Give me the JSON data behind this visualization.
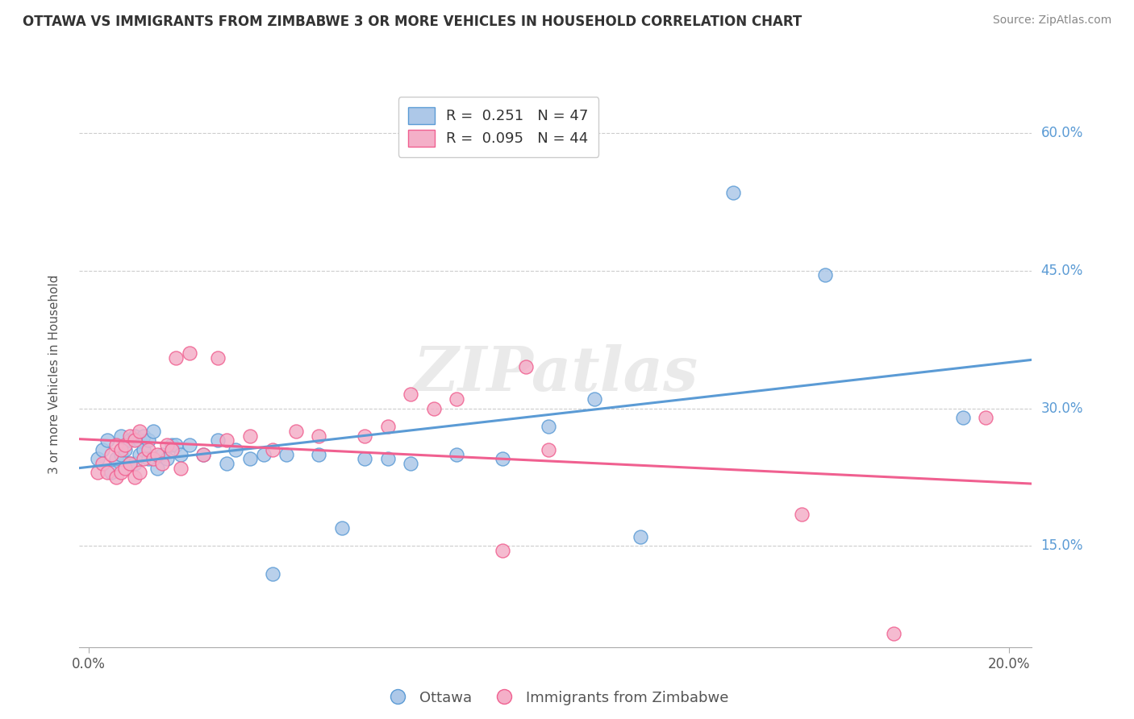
{
  "title": "OTTAWA VS IMMIGRANTS FROM ZIMBABWE 3 OR MORE VEHICLES IN HOUSEHOLD CORRELATION CHART",
  "source": "Source: ZipAtlas.com",
  "ylabel": "3 or more Vehicles in Household",
  "xlim": [
    -0.002,
    0.205
  ],
  "ylim": [
    0.04,
    0.635
  ],
  "xtick_positions": [
    0.0,
    0.2
  ],
  "xtick_labels": [
    "0.0%",
    "20.0%"
  ],
  "ytick_positions": [
    0.15,
    0.3,
    0.45,
    0.6
  ],
  "ytick_labels": [
    "15.0%",
    "30.0%",
    "45.0%",
    "60.0%"
  ],
  "grid_yticks": [
    0.15,
    0.3,
    0.45,
    0.6
  ],
  "ottawa_color": "#adc8e8",
  "zimbabwe_color": "#f4afc8",
  "ottawa_edge_color": "#5b9bd5",
  "zimbabwe_edge_color": "#f06090",
  "ottawa_line_color": "#5b9bd5",
  "zimbabwe_line_color": "#f06090",
  "ytick_color": "#5b9bd5",
  "xtick_color": "#555555",
  "watermark": "ZIPatlas",
  "legend_r1": "R =  0.251",
  "legend_n1": "N = 47",
  "legend_r2": "R =  0.095",
  "legend_n2": "N = 44",
  "legend_label1": "Ottawa",
  "legend_label2": "Immigrants from Zimbabwe",
  "ottawa_x": [
    0.002,
    0.003,
    0.004,
    0.005,
    0.006,
    0.007,
    0.007,
    0.008,
    0.009,
    0.009,
    0.01,
    0.01,
    0.011,
    0.011,
    0.012,
    0.012,
    0.013,
    0.013,
    0.014,
    0.015,
    0.016,
    0.017,
    0.018,
    0.019,
    0.02,
    0.022,
    0.025,
    0.028,
    0.03,
    0.032,
    0.035,
    0.038,
    0.04,
    0.043,
    0.05,
    0.055,
    0.06,
    0.065,
    0.07,
    0.08,
    0.09,
    0.1,
    0.11,
    0.12,
    0.14,
    0.16,
    0.19
  ],
  "ottawa_y": [
    0.245,
    0.255,
    0.265,
    0.23,
    0.245,
    0.25,
    0.27,
    0.255,
    0.24,
    0.265,
    0.24,
    0.27,
    0.25,
    0.265,
    0.255,
    0.27,
    0.245,
    0.265,
    0.275,
    0.235,
    0.25,
    0.245,
    0.26,
    0.26,
    0.25,
    0.26,
    0.25,
    0.265,
    0.24,
    0.255,
    0.245,
    0.25,
    0.12,
    0.25,
    0.25,
    0.17,
    0.245,
    0.245,
    0.24,
    0.25,
    0.245,
    0.28,
    0.31,
    0.16,
    0.535,
    0.445,
    0.29
  ],
  "zimbabwe_x": [
    0.002,
    0.003,
    0.004,
    0.005,
    0.006,
    0.006,
    0.007,
    0.007,
    0.008,
    0.008,
    0.009,
    0.009,
    0.01,
    0.01,
    0.011,
    0.011,
    0.012,
    0.013,
    0.014,
    0.015,
    0.016,
    0.017,
    0.018,
    0.019,
    0.02,
    0.022,
    0.025,
    0.028,
    0.03,
    0.035,
    0.04,
    0.045,
    0.05,
    0.06,
    0.065,
    0.07,
    0.075,
    0.08,
    0.09,
    0.095,
    0.1,
    0.155,
    0.175,
    0.195
  ],
  "zimbabwe_y": [
    0.23,
    0.24,
    0.23,
    0.25,
    0.225,
    0.26,
    0.23,
    0.255,
    0.235,
    0.26,
    0.24,
    0.27,
    0.225,
    0.265,
    0.23,
    0.275,
    0.245,
    0.255,
    0.245,
    0.25,
    0.24,
    0.26,
    0.255,
    0.355,
    0.235,
    0.36,
    0.25,
    0.355,
    0.265,
    0.27,
    0.255,
    0.275,
    0.27,
    0.27,
    0.28,
    0.315,
    0.3,
    0.31,
    0.145,
    0.345,
    0.255,
    0.185,
    0.055,
    0.29
  ]
}
